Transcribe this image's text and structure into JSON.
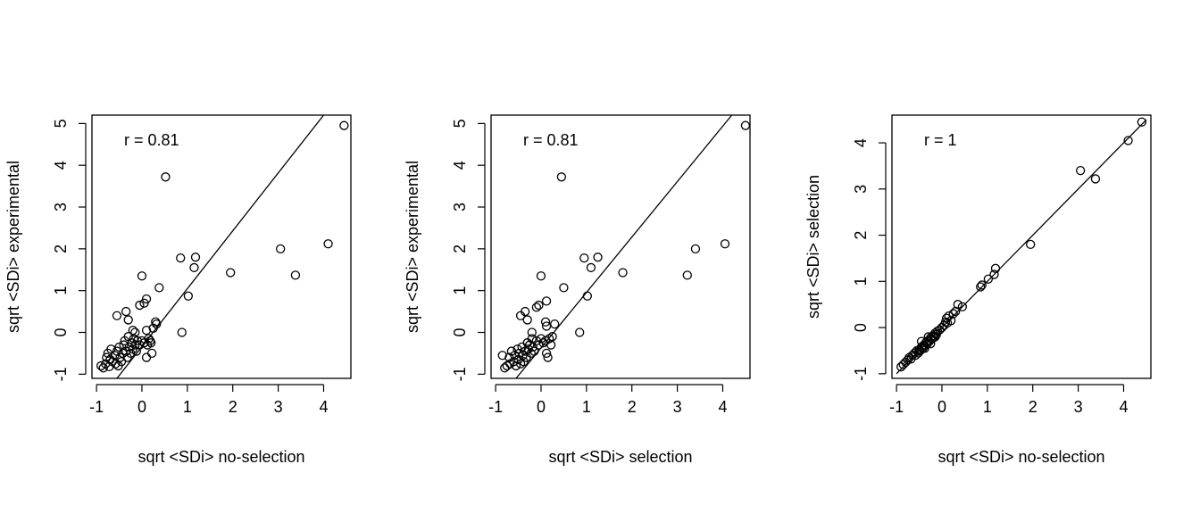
{
  "chart_data": [
    {
      "type": "scatter",
      "xlabel": "sqrt <SDi> no-selection",
      "ylabel": "sqrt <SDi> experimental",
      "annotation": "r =  0.81",
      "xlim": [
        -1.1,
        4.6
      ],
      "ylim": [
        -1.1,
        5.2
      ],
      "xticks": [
        "-1",
        "0",
        "1",
        "2",
        "3",
        "4"
      ],
      "yticks": [
        "-1",
        "0",
        "1",
        "2",
        "3",
        "4",
        "5"
      ],
      "line": {
        "x": [
          -0.55,
          4.0
        ],
        "y": [
          -1.1,
          5.2
        ]
      },
      "points": [
        [
          -0.9,
          -0.8
        ],
        [
          -0.85,
          -0.85
        ],
        [
          -0.8,
          -0.75
        ],
        [
          -0.78,
          -0.6
        ],
        [
          -0.75,
          -0.5
        ],
        [
          -0.72,
          -0.82
        ],
        [
          -0.7,
          -0.65
        ],
        [
          -0.68,
          -0.4
        ],
        [
          -0.65,
          -0.7
        ],
        [
          -0.6,
          -0.55
        ],
        [
          -0.58,
          -0.75
        ],
        [
          -0.55,
          -0.45
        ],
        [
          -0.52,
          -0.8
        ],
        [
          -0.5,
          -0.35
        ],
        [
          -0.48,
          -0.6
        ],
        [
          -0.45,
          -0.7
        ],
        [
          -0.42,
          -0.5
        ],
        [
          -0.4,
          -0.3
        ],
        [
          -0.38,
          -0.2
        ],
        [
          -0.35,
          -0.45
        ],
        [
          -0.32,
          -0.6
        ],
        [
          -0.3,
          -0.1
        ],
        [
          -0.28,
          -0.35
        ],
        [
          -0.25,
          -0.5
        ],
        [
          -0.22,
          -0.25
        ],
        [
          -0.2,
          -0.4
        ],
        [
          -0.18,
          -0.15
        ],
        [
          -0.15,
          -0.3
        ],
        [
          -0.12,
          -0.45
        ],
        [
          -0.1,
          -0.2
        ],
        [
          -0.05,
          -0.3
        ],
        [
          0.0,
          -0.2
        ],
        [
          0.05,
          -0.25
        ],
        [
          0.1,
          -0.6
        ],
        [
          0.12,
          -0.3
        ],
        [
          0.15,
          -0.15
        ],
        [
          0.18,
          -0.2
        ],
        [
          0.2,
          -0.25
        ],
        [
          0.22,
          -0.5
        ],
        [
          0.25,
          0.1
        ],
        [
          0.3,
          0.25
        ],
        [
          0.32,
          0.2
        ],
        [
          0.1,
          0.05
        ],
        [
          -0.55,
          0.4
        ],
        [
          -0.35,
          0.5
        ],
        [
          -0.3,
          0.3
        ],
        [
          -0.2,
          0.05
        ],
        [
          -0.15,
          0.0
        ],
        [
          -0.05,
          0.65
        ],
        [
          0.05,
          0.7
        ],
        [
          0.1,
          0.8
        ],
        [
          0.0,
          1.35
        ],
        [
          0.38,
          1.07
        ],
        [
          0.52,
          3.72
        ],
        [
          0.85,
          1.78
        ],
        [
          0.88,
          0.0
        ],
        [
          1.02,
          0.87
        ],
        [
          1.15,
          1.55
        ],
        [
          1.18,
          1.8
        ],
        [
          1.95,
          1.43
        ],
        [
          3.05,
          2.0
        ],
        [
          3.38,
          1.37
        ],
        [
          4.1,
          2.12
        ],
        [
          4.45,
          4.95
        ]
      ]
    },
    {
      "type": "scatter",
      "xlabel": "sqrt <SDi> selection",
      "ylabel": "sqrt <SDi> experimental",
      "annotation": "r =  0.81",
      "xlim": [
        -1.1,
        4.6
      ],
      "ylim": [
        -1.1,
        5.2
      ],
      "xticks": [
        "-1",
        "0",
        "1",
        "2",
        "3",
        "4"
      ],
      "yticks": [
        "-1",
        "0",
        "1",
        "2",
        "3",
        "4",
        "5"
      ],
      "line": {
        "x": [
          -0.55,
          4.2
        ],
        "y": [
          -1.1,
          5.2
        ]
      },
      "points": [
        [
          -0.85,
          -0.55
        ],
        [
          -0.8,
          -0.85
        ],
        [
          -0.75,
          -0.8
        ],
        [
          -0.7,
          -0.6
        ],
        [
          -0.68,
          -0.75
        ],
        [
          -0.65,
          -0.45
        ],
        [
          -0.6,
          -0.7
        ],
        [
          -0.58,
          -0.55
        ],
        [
          -0.55,
          -0.8
        ],
        [
          -0.52,
          -0.4
        ],
        [
          -0.5,
          -0.65
        ],
        [
          -0.48,
          -0.5
        ],
        [
          -0.45,
          -0.75
        ],
        [
          -0.42,
          -0.35
        ],
        [
          -0.4,
          -0.55
        ],
        [
          -0.38,
          -0.7
        ],
        [
          -0.35,
          -0.45
        ],
        [
          -0.32,
          -0.6
        ],
        [
          -0.3,
          -0.25
        ],
        [
          -0.28,
          -0.4
        ],
        [
          -0.25,
          -0.3
        ],
        [
          -0.22,
          -0.5
        ],
        [
          -0.2,
          -0.15
        ],
        [
          -0.18,
          -0.35
        ],
        [
          -0.15,
          -0.45
        ],
        [
          -0.1,
          -0.2
        ],
        [
          -0.05,
          -0.3
        ],
        [
          0.0,
          -0.15
        ],
        [
          0.05,
          -0.25
        ],
        [
          0.1,
          -0.2
        ],
        [
          0.12,
          -0.5
        ],
        [
          0.15,
          -0.6
        ],
        [
          0.18,
          -0.15
        ],
        [
          0.22,
          -0.3
        ],
        [
          0.25,
          -0.1
        ],
        [
          0.3,
          0.2
        ],
        [
          0.1,
          0.25
        ],
        [
          0.12,
          0.15
        ],
        [
          -0.45,
          0.4
        ],
        [
          -0.35,
          0.5
        ],
        [
          -0.3,
          0.3
        ],
        [
          -0.2,
          0.0
        ],
        [
          -0.05,
          0.65
        ],
        [
          -0.1,
          0.6
        ],
        [
          0.12,
          0.75
        ],
        [
          0.0,
          1.35
        ],
        [
          0.5,
          1.07
        ],
        [
          0.45,
          3.72
        ],
        [
          0.95,
          1.78
        ],
        [
          0.85,
          0.0
        ],
        [
          1.02,
          0.87
        ],
        [
          1.1,
          1.55
        ],
        [
          1.25,
          1.8
        ],
        [
          1.8,
          1.43
        ],
        [
          3.22,
          1.37
        ],
        [
          3.4,
          2.0
        ],
        [
          4.05,
          2.12
        ],
        [
          4.5,
          4.95
        ]
      ]
    },
    {
      "type": "scatter",
      "xlabel": "sqrt <SDi> no-selection",
      "ylabel": "sqrt <SDi> selection",
      "annotation": "r =  1",
      "xlim": [
        -1.1,
        4.6
      ],
      "ylim": [
        -1.1,
        4.6
      ],
      "xticks": [
        "-1",
        "0",
        "1",
        "2",
        "3",
        "4"
      ],
      "yticks": [
        "-1",
        "0",
        "1",
        "2",
        "3",
        "4"
      ],
      "line": {
        "x": [
          -1.0,
          4.5
        ],
        "y": [
          -1.0,
          4.5
        ]
      },
      "points": [
        [
          -0.9,
          -0.85
        ],
        [
          -0.85,
          -0.8
        ],
        [
          -0.8,
          -0.75
        ],
        [
          -0.75,
          -0.7
        ],
        [
          -0.72,
          -0.65
        ],
        [
          -0.68,
          -0.68
        ],
        [
          -0.65,
          -0.6
        ],
        [
          -0.6,
          -0.55
        ],
        [
          -0.58,
          -0.6
        ],
        [
          -0.55,
          -0.5
        ],
        [
          -0.52,
          -0.55
        ],
        [
          -0.5,
          -0.48
        ],
        [
          -0.48,
          -0.5
        ],
        [
          -0.45,
          -0.42
        ],
        [
          -0.42,
          -0.45
        ],
        [
          -0.4,
          -0.38
        ],
        [
          -0.38,
          -0.4
        ],
        [
          -0.35,
          -0.32
        ],
        [
          -0.32,
          -0.35
        ],
        [
          -0.3,
          -0.28
        ],
        [
          -0.28,
          -0.3
        ],
        [
          -0.25,
          -0.22
        ],
        [
          -0.22,
          -0.25
        ],
        [
          -0.2,
          -0.18
        ],
        [
          -0.18,
          -0.2
        ],
        [
          -0.15,
          -0.12
        ],
        [
          -0.12,
          -0.15
        ],
        [
          -0.1,
          -0.08
        ],
        [
          -0.05,
          -0.05
        ],
        [
          0.0,
          0.0
        ],
        [
          0.05,
          0.05
        ],
        [
          0.08,
          0.12
        ],
        [
          0.1,
          0.2
        ],
        [
          0.12,
          0.1
        ],
        [
          0.15,
          0.25
        ],
        [
          0.2,
          0.15
        ],
        [
          0.25,
          0.3
        ],
        [
          0.3,
          0.35
        ],
        [
          0.35,
          0.5
        ],
        [
          0.45,
          0.45
        ],
        [
          -0.45,
          -0.3
        ],
        [
          -0.38,
          -0.45
        ],
        [
          -0.3,
          -0.2
        ],
        [
          -0.25,
          -0.35
        ],
        [
          -0.15,
          -0.2
        ],
        [
          0.85,
          0.88
        ],
        [
          0.88,
          0.92
        ],
        [
          1.02,
          1.05
        ],
        [
          1.15,
          1.15
        ],
        [
          1.18,
          1.28
        ],
        [
          1.95,
          1.8
        ],
        [
          3.05,
          3.4
        ],
        [
          3.38,
          3.22
        ],
        [
          4.1,
          4.05
        ],
        [
          4.4,
          4.45
        ]
      ]
    }
  ]
}
